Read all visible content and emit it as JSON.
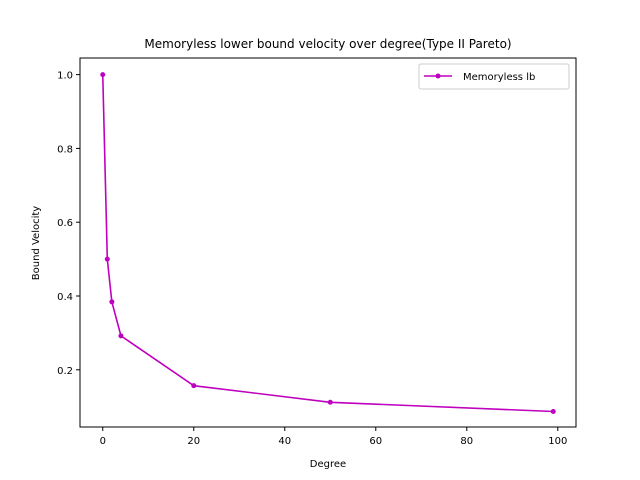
{
  "chart_data": {
    "type": "line",
    "title": "Memoryless lower bound velocity over degree(Type II Pareto)",
    "xlabel": "Degree",
    "ylabel": "Bound Velocity",
    "xlim": [
      -5,
      104
    ],
    "ylim": [
      0.045,
      1.045
    ],
    "xticks": [
      0,
      20,
      40,
      60,
      80,
      100
    ],
    "yticks": [
      0.2,
      0.4,
      0.6,
      0.8,
      1.0
    ],
    "xtick_labels": [
      "0",
      "20",
      "40",
      "60",
      "80",
      "100"
    ],
    "ytick_labels": [
      "0.2",
      "0.4",
      "0.6",
      "0.8",
      "1.0"
    ],
    "grid": false,
    "legend": "top-right",
    "series": [
      {
        "name": "Memoryless lb",
        "color": "#bf00bf",
        "marker": "dot",
        "x": [
          0,
          1,
          2,
          4,
          20,
          50,
          99
        ],
        "y": [
          1.0,
          0.5,
          0.384,
          0.292,
          0.157,
          0.112,
          0.087
        ]
      }
    ]
  }
}
